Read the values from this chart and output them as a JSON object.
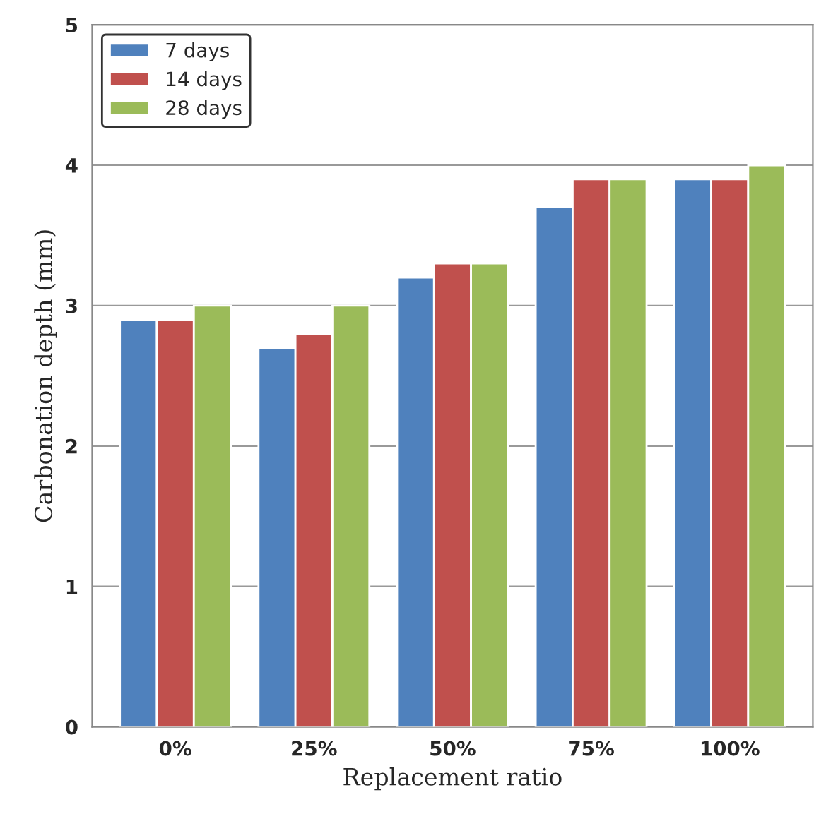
{
  "chart_data": {
    "type": "bar",
    "xlabel": "Replacement ratio",
    "ylabel": "Carbonation depth (mm)",
    "categories": [
      "0%",
      "25%",
      "50%",
      "75%",
      "100%"
    ],
    "series": [
      {
        "name": "7 days",
        "color": "#4f81bd",
        "values": [
          2.9,
          2.7,
          3.2,
          3.7,
          3.9
        ]
      },
      {
        "name": "14 days",
        "color": "#c0504d",
        "values": [
          2.9,
          2.8,
          3.3,
          3.9,
          3.9
        ]
      },
      {
        "name": "28 days",
        "color": "#9bbb59",
        "values": [
          3.0,
          3.0,
          3.3,
          3.9,
          4.0
        ]
      }
    ],
    "ylim": [
      0,
      5
    ],
    "yticks": [
      0,
      1,
      2,
      3,
      4,
      5
    ],
    "grid": "y",
    "legend": "top left"
  }
}
